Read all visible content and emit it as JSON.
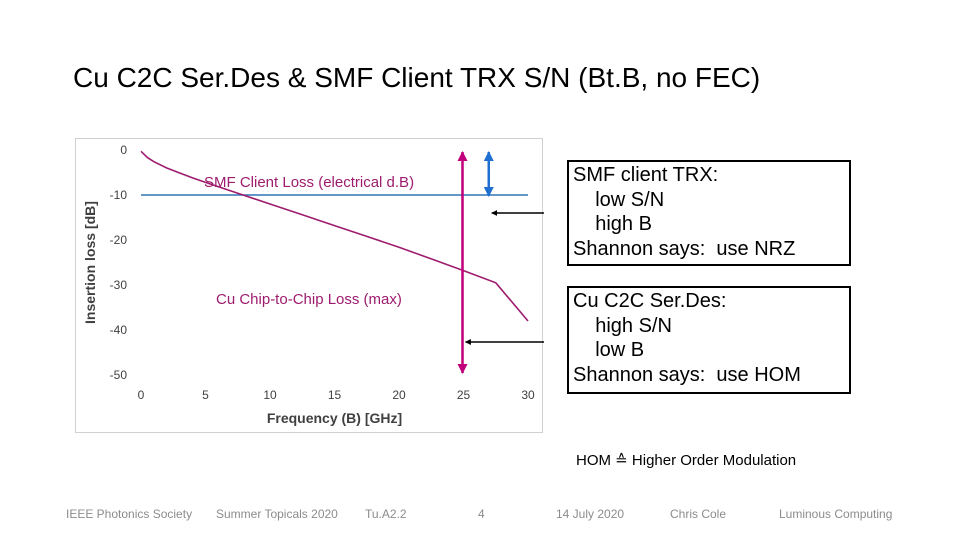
{
  "title": "Cu C2C Ser.Des & SMF Client TRX S/N (Bt.B, no FEC)",
  "chart_data": {
    "type": "line",
    "xlabel": "Frequency (B) [GHz]",
    "ylabel": "Insertion loss [dB]",
    "xlim": [
      0,
      30
    ],
    "ylim": [
      -50,
      0
    ],
    "x_ticks": [
      0,
      5,
      10,
      15,
      20,
      25,
      30
    ],
    "y_ticks": [
      0,
      -10,
      -20,
      -30,
      -40,
      -50
    ],
    "grid": false,
    "legend": "none",
    "series": [
      {
        "name": "SMF Client Loss (electrical d.B)",
        "color": "#2e75b6",
        "x": [
          0,
          30
        ],
        "y": [
          -10,
          -10
        ]
      },
      {
        "name": "Cu Chip-to-Chip Loss (max)",
        "color": "#9e1c6e",
        "x": [
          0,
          0.5,
          1,
          2,
          3,
          4,
          5,
          7.5,
          10,
          12.5,
          15,
          17.5,
          20,
          22.5,
          25,
          27.5,
          30
        ],
        "y": [
          -0.3,
          -1.7,
          -2.6,
          -4.0,
          -5.1,
          -6.2,
          -7.2,
          -9.6,
          -12.0,
          -14.4,
          -16.8,
          -19.2,
          -21.6,
          -24.2,
          -26.8,
          -29.5,
          -38.0
        ]
      }
    ],
    "annotations": {
      "cu_arrow": {
        "x": 25,
        "y_from": 0,
        "y_to": -50,
        "color": "#c0007a"
      },
      "smf_arrow": {
        "x": 27.5,
        "y_from": 0,
        "y_to": -10,
        "color": "#1f6fd1"
      }
    }
  },
  "callouts": {
    "smf": "SMF client TRX:\n    low S/N\n    high B\nShannon says:  use NRZ",
    "cu": "Cu C2C Ser.Des:\n    high S/N\n    low B\nShannon says:  use HOM"
  },
  "hom_note": "HOM ≙ Higher Order Modulation",
  "footer": {
    "society": "IEEE Photonics Society",
    "event": "Summer Topicals 2020",
    "session": "Tu.A2.2",
    "page": "4",
    "date": "14 July 2020",
    "author": "Chris Cole",
    "company": "Luminous Computing"
  }
}
